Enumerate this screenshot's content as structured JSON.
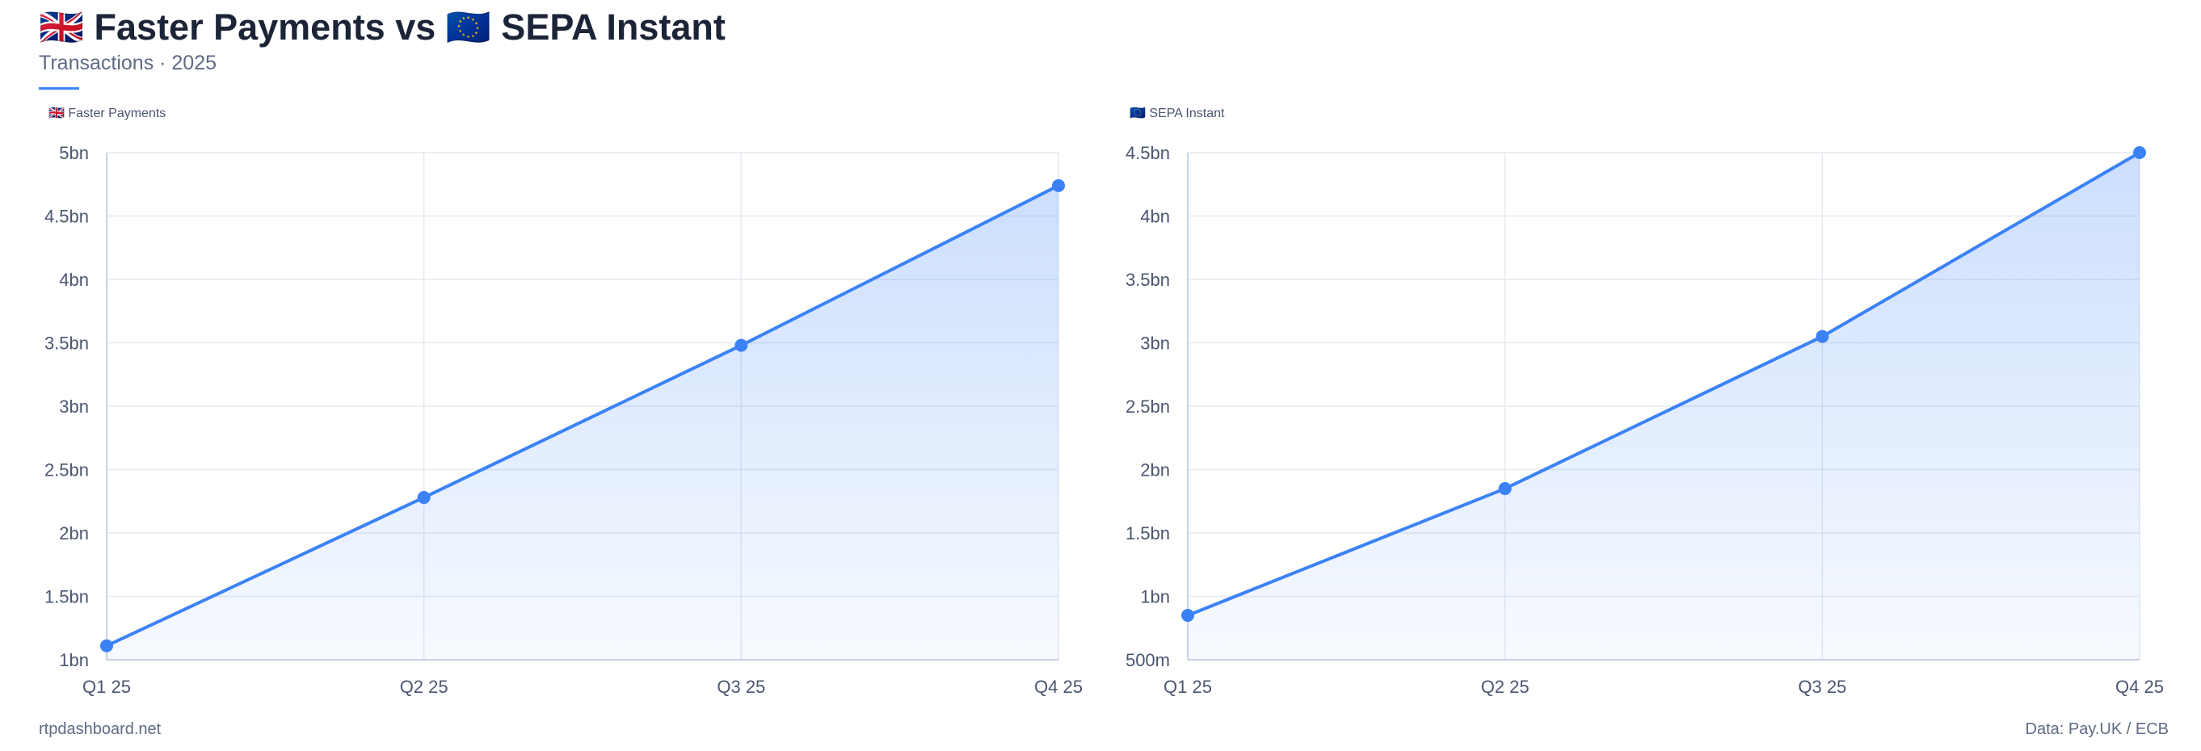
{
  "header": {
    "title": "🇬🇧 Faster Payments vs 🇪🇺 SEPA Instant",
    "subtitle": "Transactions · 2025"
  },
  "footer": {
    "site": "rtpdashboard.net",
    "source": "Data: Pay.UK / ECB"
  },
  "colors": {
    "line": "#3b82f6",
    "fill": "#3b82f6",
    "grid": "#e5e9f0",
    "axis": "#c9d3e2",
    "tick": "#4a5670"
  },
  "chart_data": [
    {
      "type": "area",
      "legend": "🇬🇧 Faster Payments",
      "categories": [
        "Q1 25",
        "Q2 25",
        "Q3 25",
        "Q4 25"
      ],
      "series": [
        {
          "name": "🇬🇧 Faster Payments",
          "values": [
            1.11,
            2.28,
            3.48,
            4.74
          ]
        }
      ],
      "ylim": [
        1,
        5
      ],
      "yticks": [
        1,
        1.5,
        2,
        2.5,
        3,
        3.5,
        4,
        4.5,
        5
      ],
      "ytick_labels": [
        "1bn",
        "1.5bn",
        "2bn",
        "2.5bn",
        "3bn",
        "3.5bn",
        "4bn",
        "4.5bn",
        "5bn"
      ],
      "grid": true,
      "legend_position": "top-left"
    },
    {
      "type": "area",
      "legend": "🇪🇺 SEPA Instant",
      "categories": [
        "Q1 25",
        "Q2 25",
        "Q3 25",
        "Q4 25"
      ],
      "series": [
        {
          "name": "🇪🇺 SEPA Instant",
          "values": [
            0.85,
            1.85,
            3.05,
            4.5
          ]
        }
      ],
      "ylim": [
        0.5,
        4.5
      ],
      "yticks": [
        0.5,
        1,
        1.5,
        2,
        2.5,
        3,
        3.5,
        4,
        4.5
      ],
      "ytick_labels": [
        "500m",
        "1bn",
        "1.5bn",
        "2bn",
        "2.5bn",
        "3bn",
        "3.5bn",
        "4bn",
        "4.5bn"
      ],
      "grid": true,
      "legend_position": "top-left"
    }
  ]
}
